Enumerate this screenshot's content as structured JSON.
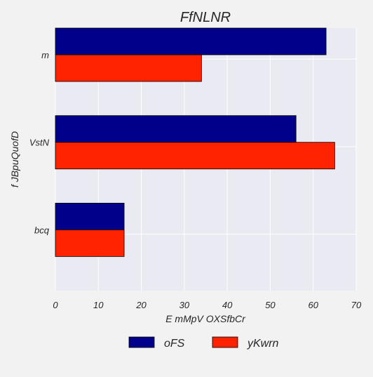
{
  "chart_data": {
    "type": "bar",
    "orientation": "horizontal",
    "title": "FfNLNR",
    "xlabel": "E mMpV OXSfbCr",
    "ylabel": "f JBpuQuofD",
    "categories": [
      "m",
      "VstN",
      "bcq"
    ],
    "series": [
      {
        "name": "oFS",
        "color": "#00008b",
        "values": [
          63,
          56,
          16
        ]
      },
      {
        "name": "yKwrn",
        "color": "#ff2200",
        "values": [
          34,
          65,
          16
        ]
      }
    ],
    "xlim": [
      0,
      70
    ],
    "xticks": [
      0,
      10,
      20,
      30,
      40,
      50,
      60,
      70
    ],
    "grid": true,
    "legend_position": "bottom-center",
    "colors": {
      "plot_background": "#eaeaf2",
      "figure_background": "#f2f2f2",
      "grid": "#ffffff",
      "bar_edge": "#000000"
    }
  }
}
